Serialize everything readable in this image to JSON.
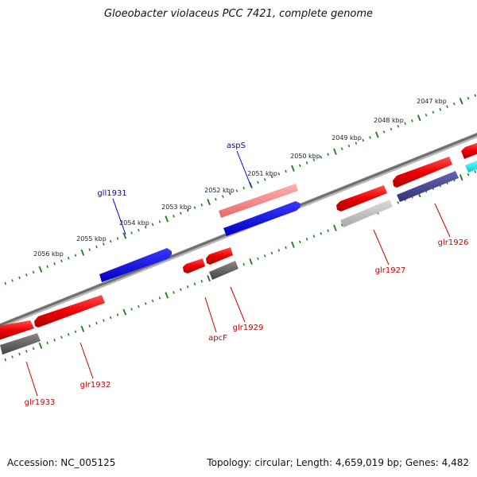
{
  "title": "Gloeobacter violaceus PCC 7421, complete genome",
  "footer": {
    "accession": "Accession: NC_005125",
    "summary": "Topology: circular; Length: 4,659,019 bp; Genes: 4,482"
  },
  "colors": {
    "backbone": "#7a7a7a",
    "tick": "#1a7a1a",
    "forward_label": "#0000cc",
    "reverse_label": "#cc0000"
  },
  "scale_labels": [
    "2047 kbp",
    "2048 kbp",
    "2049 kbp",
    "2050 kbp",
    "2051 kbp",
    "2052 kbp",
    "2053 kbp",
    "2054 kbp",
    "2055 kbp",
    "2056 kbp"
  ],
  "genes": [
    {
      "id": "aspS",
      "label": "aspS",
      "strand": "forward",
      "color": "#0000ee"
    },
    {
      "id": "gll1931",
      "label": "gll1931",
      "strand": "forward",
      "color": "#0000ee"
    },
    {
      "id": "glr1926",
      "label": "glr1926",
      "strand": "reverse",
      "color": "#e00000"
    },
    {
      "id": "glr1927",
      "label": "glr1927",
      "strand": "reverse",
      "color": "#e00000"
    },
    {
      "id": "glr1929",
      "label": "glr1929",
      "strand": "reverse",
      "color": "#e00000"
    },
    {
      "id": "apcF",
      "label": "apcF",
      "strand": "reverse",
      "color": "#e00000"
    },
    {
      "id": "glr1932",
      "label": "glr1932",
      "strand": "reverse",
      "color": "#e00000"
    },
    {
      "id": "glr1933",
      "label": "glr1933",
      "strand": "reverse",
      "color": "#e00000"
    }
  ]
}
